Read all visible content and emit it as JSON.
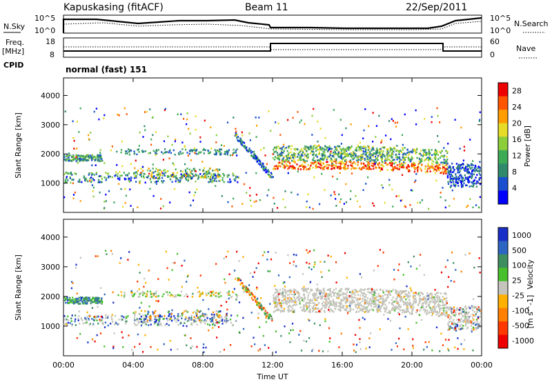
{
  "header": {
    "station": "Kapuskasing (fitACF)",
    "beam": "Beam 11",
    "date": "22/Sep/2011"
  },
  "top_panel": {
    "left_label": "N.Sky",
    "right_label": "N.Search",
    "y_ticks_left": [
      "10^5",
      "10^0"
    ],
    "y_ticks_right": [
      "10^5",
      "10^0"
    ]
  },
  "freq_panel": {
    "left_label": "Freq.",
    "left_unit": "[MHz]",
    "right_label": "Nave",
    "y_ticks_left": [
      "18",
      "8"
    ],
    "y_ticks_right": [
      "60",
      "0"
    ],
    "cpid_label": "CPID",
    "cpid_value": "normal (fast) 151"
  },
  "x_axis": {
    "label": "Time UT",
    "ticks": [
      "00:00",
      "04:00",
      "08:00",
      "12:00",
      "16:00",
      "20:00",
      "00:00"
    ]
  },
  "colors": {
    "power": [
      "#0000ff",
      "#1a4fcf",
      "#2f8a6c",
      "#3daa55",
      "#8ccd3a",
      "#e6dc28",
      "#ff9c00",
      "#ff5500",
      "#ee0000"
    ],
    "velocity": [
      "#1a2fc8",
      "#2d66c2",
      "#3f8e5f",
      "#48c02b",
      "#c4c4bc",
      "#ffb000",
      "#ff7f00",
      "#ff3800",
      "#ee0000"
    ]
  },
  "chart_data": [
    {
      "type": "heatmap",
      "name": "power",
      "ylabel": "Slant Range [km]",
      "y_ticks": [
        "1000",
        "2000",
        "3000",
        "4000"
      ],
      "ylim": [
        0,
        4600
      ],
      "xlim": [
        0,
        24
      ],
      "colorbar": {
        "label": "Power [dB]",
        "ticks": [
          "4",
          "8",
          "12",
          "16",
          "20",
          "24",
          "28"
        ],
        "range": [
          0,
          30
        ]
      }
    },
    {
      "type": "heatmap",
      "name": "velocity",
      "ylabel": "Slant Range [km]",
      "y_ticks": [
        "1000",
        "2000",
        "3000",
        "4000"
      ],
      "ylim": [
        0,
        4600
      ],
      "xlim": [
        0,
        24
      ],
      "colorbar": {
        "label": "Velocity",
        "unit": "[m s^-1]",
        "ticks": [
          "1000",
          "500",
          "100",
          "25",
          "-25",
          "-100",
          "-500",
          "-1000"
        ]
      }
    }
  ]
}
